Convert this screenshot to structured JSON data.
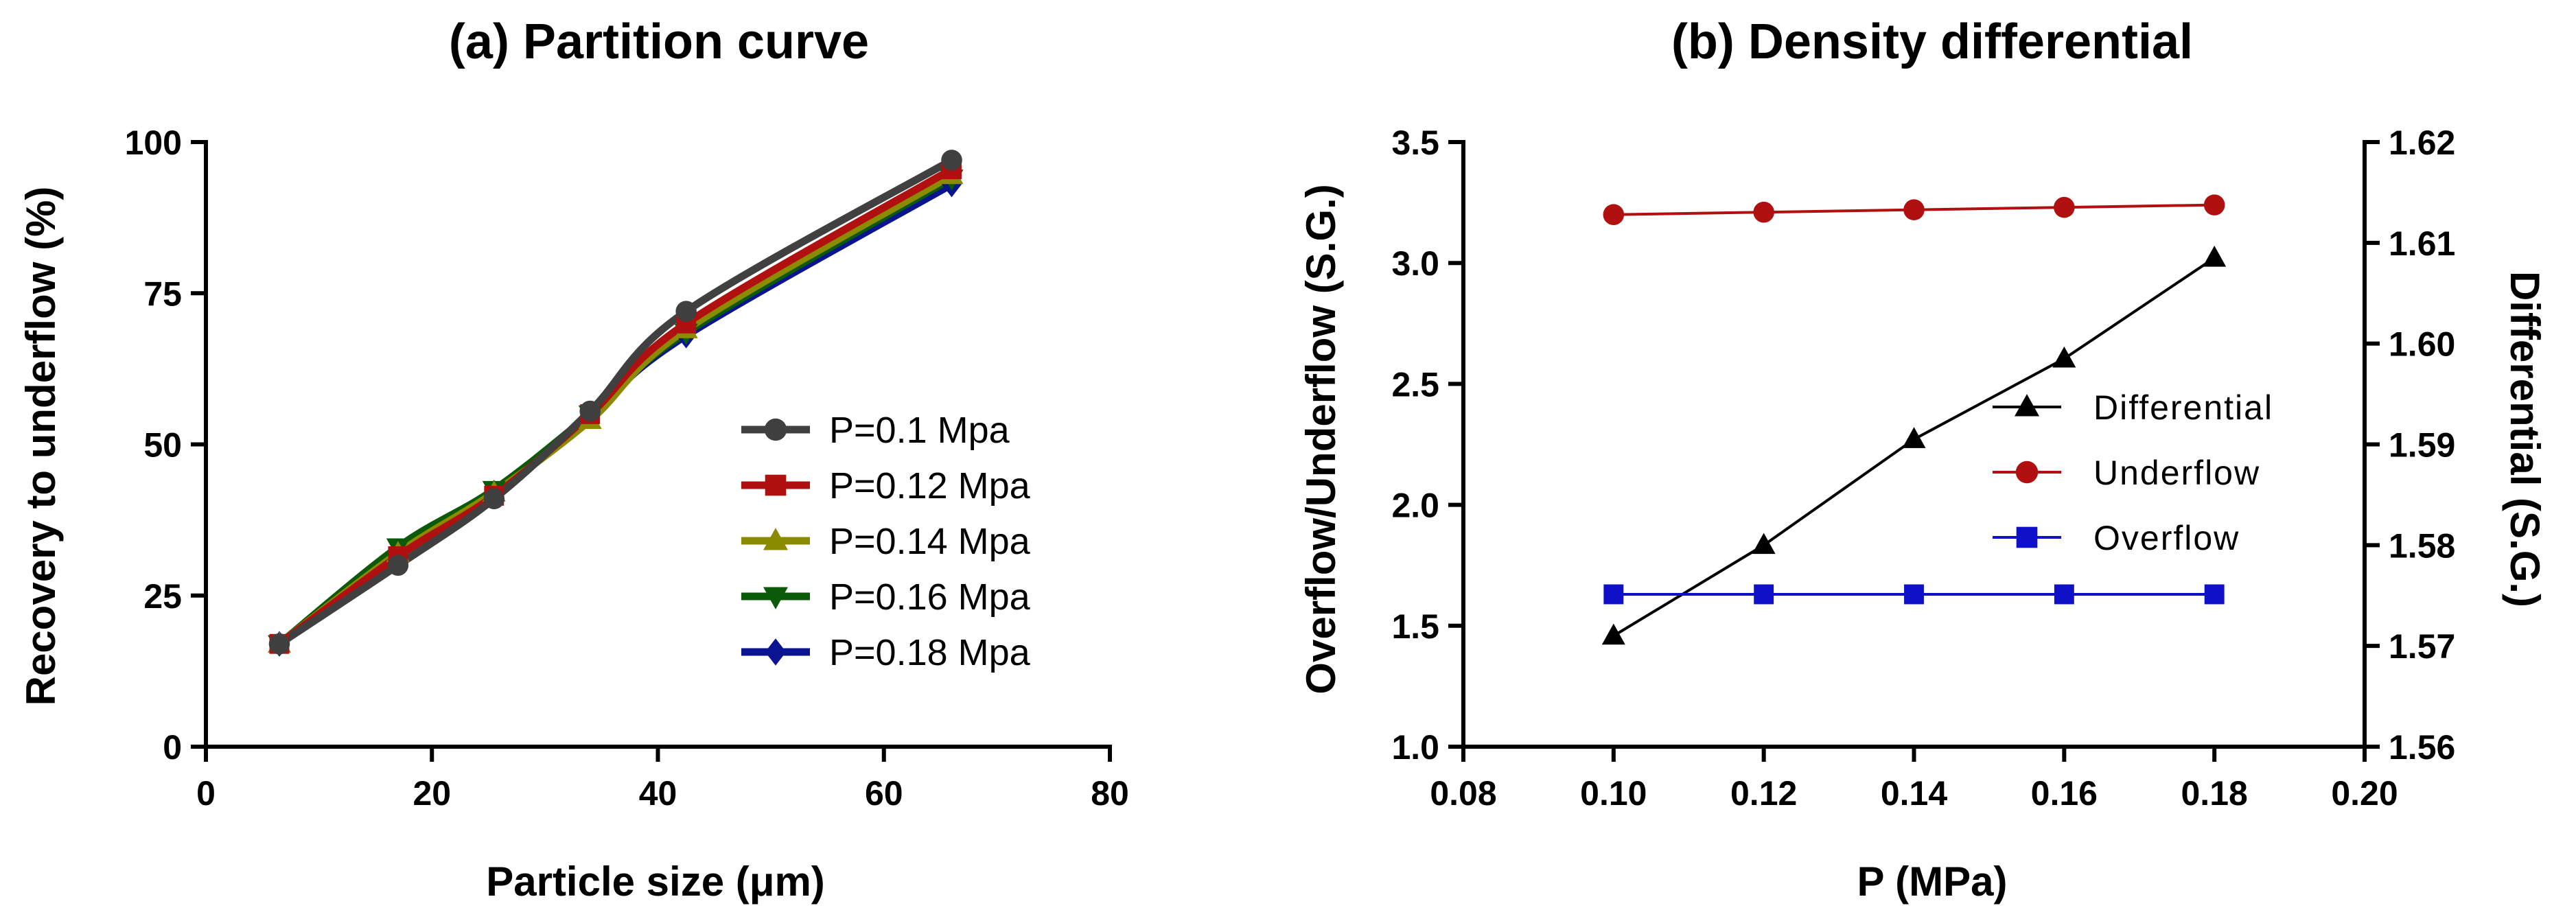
{
  "chart_data": [
    {
      "type": "line",
      "title": "(a) Partition curve",
      "xlabel": "Particle size (μm)",
      "ylabel": "Recovery to underflow (%)",
      "xlim": [
        0,
        80
      ],
      "ylim": [
        0,
        100
      ],
      "xticks": [
        0,
        20,
        40,
        60,
        80
      ],
      "yticks": [
        0,
        25,
        50,
        75,
        100
      ],
      "tick_labels_x": [
        "0",
        "20",
        "40",
        "60",
        "80"
      ],
      "tick_labels_y": [
        "0",
        "25",
        "50",
        "75",
        "100"
      ],
      "grid": false,
      "legend_position": "right-center",
      "x": [
        6.5,
        17,
        25.5,
        34,
        42.5,
        66
      ],
      "series": [
        {
          "name": "P=0.1 Mpa",
          "marker": "circle",
          "color": "#404040",
          "values": [
            17,
            30,
            41,
            55.5,
            72,
            97
          ]
        },
        {
          "name": "P=0.12 Mpa",
          "marker": "square",
          "color": "#b01010",
          "values": [
            17,
            31.5,
            41.5,
            55,
            70,
            95.5
          ]
        },
        {
          "name": "P=0.14 Mpa",
          "marker": "triangle-up",
          "color": "#8b8b00",
          "values": [
            17,
            32,
            42,
            54,
            69,
            94.5
          ]
        },
        {
          "name": "P=0.16 Mpa",
          "marker": "triangle-down",
          "color": "#0a5a0a",
          "values": [
            17,
            33,
            42.5,
            55,
            68.5,
            94
          ]
        },
        {
          "name": "P=0.18 Mpa",
          "marker": "diamond",
          "color": "#0a1490",
          "values": [
            17,
            32,
            42,
            55,
            68,
            93
          ]
        }
      ]
    },
    {
      "type": "line",
      "title": "(b) Density differential",
      "xlabel": "P (MPa)",
      "ylabel": "Overflow/Underflow (S.G.)",
      "y2label": "Differential (S.G.)",
      "xlim": [
        0.08,
        0.2
      ],
      "ylim": [
        1.0,
        3.5
      ],
      "y2lim": [
        1.56,
        1.62
      ],
      "tick_labels_x": [
        "0.08",
        "0.10",
        "0.12",
        "0.14",
        "0.16",
        "0.18",
        "0.20"
      ],
      "tick_labels_y": [
        "1.0",
        "1.5",
        "2.0",
        "2.5",
        "3.0",
        "3.5"
      ],
      "tick_labels_y2": [
        "1.56",
        "1.57",
        "1.58",
        "1.59",
        "1.60",
        "1.61",
        "1.62"
      ],
      "xticks": [
        0.08,
        0.1,
        0.12,
        0.14,
        0.16,
        0.18,
        0.2
      ],
      "yticks": [
        1.0,
        1.5,
        2.0,
        2.5,
        3.0,
        3.5
      ],
      "y2ticks": [
        1.56,
        1.57,
        1.58,
        1.59,
        1.6,
        1.61,
        1.62
      ],
      "grid": false,
      "legend_position": "right-center",
      "x": [
        0.1,
        0.12,
        0.14,
        0.16,
        0.18
      ],
      "series": [
        {
          "name": "Differential",
          "axis": "right",
          "marker": "triangle-up",
          "color": "#000000",
          "values": [
            1.571,
            1.58,
            1.5905,
            1.5985,
            1.6085
          ]
        },
        {
          "name": "Underflow",
          "axis": "left",
          "marker": "circle",
          "color": "#b01010",
          "values": [
            3.2,
            3.21,
            3.22,
            3.23,
            3.24
          ]
        },
        {
          "name": "Overflow",
          "axis": "left",
          "marker": "square",
          "color": "#1010c8",
          "values": [
            1.63,
            1.63,
            1.63,
            1.63,
            1.63
          ]
        }
      ]
    }
  ]
}
